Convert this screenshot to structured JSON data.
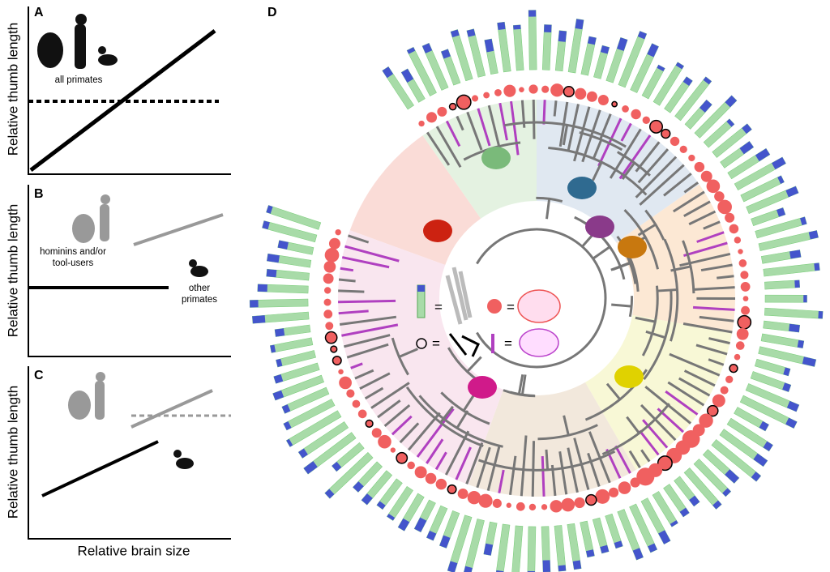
{
  "panels": [
    {
      "letter": "A",
      "y_label": "Relative thumb length",
      "annotation": "all primates"
    },
    {
      "letter": "B",
      "y_label": "Relative thumb length",
      "annotation_left": [
        "hominins and/or",
        "tool-users"
      ],
      "annotation_right": [
        "other",
        "primates"
      ]
    },
    {
      "letter": "C",
      "y_label": "Relative thumb length"
    }
  ],
  "x_label": "Relative brain size",
  "panel_d": {
    "letter": "D",
    "legend": [
      "=",
      "=",
      "=",
      "="
    ]
  }
}
